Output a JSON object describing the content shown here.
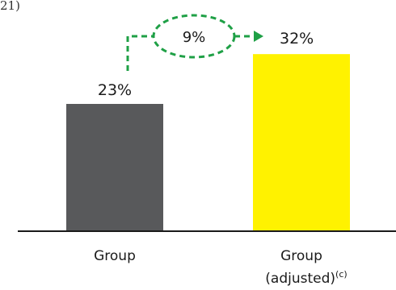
{
  "top_fragment": "21)",
  "chart_data": {
    "type": "bar",
    "categories": [
      "Group",
      "Group (adjusted)(c)"
    ],
    "category_lines": [
      {
        "line1": "Group",
        "line2": "",
        "footnote": ""
      },
      {
        "line1": "Group",
        "line2": "(adjusted)",
        "footnote": "(c)"
      }
    ],
    "values": [
      23,
      32
    ],
    "value_labels": [
      "23%",
      "32%"
    ],
    "colors": [
      "#58595b",
      "#fff200"
    ],
    "ylim": [
      0,
      45
    ],
    "annotation": {
      "text": "9%",
      "color": "#1fa046",
      "style": "dashed-arrow",
      "from_bar": 0,
      "to_bar": 1
    }
  }
}
